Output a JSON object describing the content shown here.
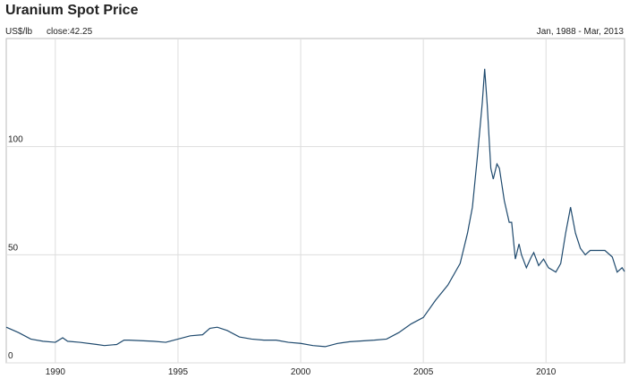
{
  "chart_data": {
    "type": "line",
    "title": "Uranium Spot Price",
    "y_label": "US$/lb",
    "close_label": "close:42.25",
    "range_label": "Jan, 1988 - Mar, 2013",
    "xlim": [
      1988,
      2013.2
    ],
    "ylim": [
      0,
      150
    ],
    "xticks": [
      1990,
      1995,
      2000,
      2005,
      2010
    ],
    "yticks": [
      0,
      50,
      100
    ],
    "grid": true,
    "x": [
      1988,
      1988.5,
      1989,
      1989.5,
      1990,
      1990.3,
      1990.5,
      1991,
      1991.7,
      1992,
      1992.5,
      1992.8,
      1993,
      1994,
      1994.5,
      1995,
      1995.5,
      1996,
      1996.3,
      1996.6,
      1997,
      1997.5,
      1998,
      1998.5,
      1999,
      1999.5,
      2000,
      2000.5,
      2001,
      2001.5,
      2002,
      2003,
      2003.5,
      2004,
      2004.5,
      2005,
      2005.5,
      2006,
      2006.5,
      2006.8,
      2007,
      2007.2,
      2007.4,
      2007.5,
      2007.6,
      2007.75,
      2007.85,
      2008,
      2008.1,
      2008.3,
      2008.5,
      2008.6,
      2008.75,
      2008.9,
      2009,
      2009.2,
      2009.4,
      2009.5,
      2009.7,
      2009.9,
      2010.1,
      2010.4,
      2010.6,
      2010.8,
      2011,
      2011.2,
      2011.4,
      2011.6,
      2011.8,
      2012,
      2012.4,
      2012.7,
      2012.9,
      2013.1,
      2013.2
    ],
    "series": [
      {
        "name": "Uranium",
        "color": "#1f4a6e",
        "values": [
          16.5,
          14,
          11,
          10,
          9.5,
          11.6,
          10,
          9.5,
          8.5,
          8,
          8.5,
          10.5,
          10.5,
          10,
          9.5,
          11,
          12.5,
          13,
          16,
          16.5,
          15,
          12,
          11,
          10.5,
          10.5,
          9.5,
          9,
          8,
          7.5,
          9,
          9.8,
          10.5,
          11,
          14,
          18,
          21,
          29,
          36,
          46,
          60,
          72,
          95,
          120,
          136,
          120,
          90,
          85,
          92,
          90,
          75,
          65,
          65,
          48,
          55,
          50,
          44,
          49,
          51,
          45,
          48,
          44,
          42,
          46,
          60,
          72,
          60,
          53,
          50,
          52,
          52,
          52,
          49,
          42,
          44,
          42.25
        ]
      }
    ]
  }
}
